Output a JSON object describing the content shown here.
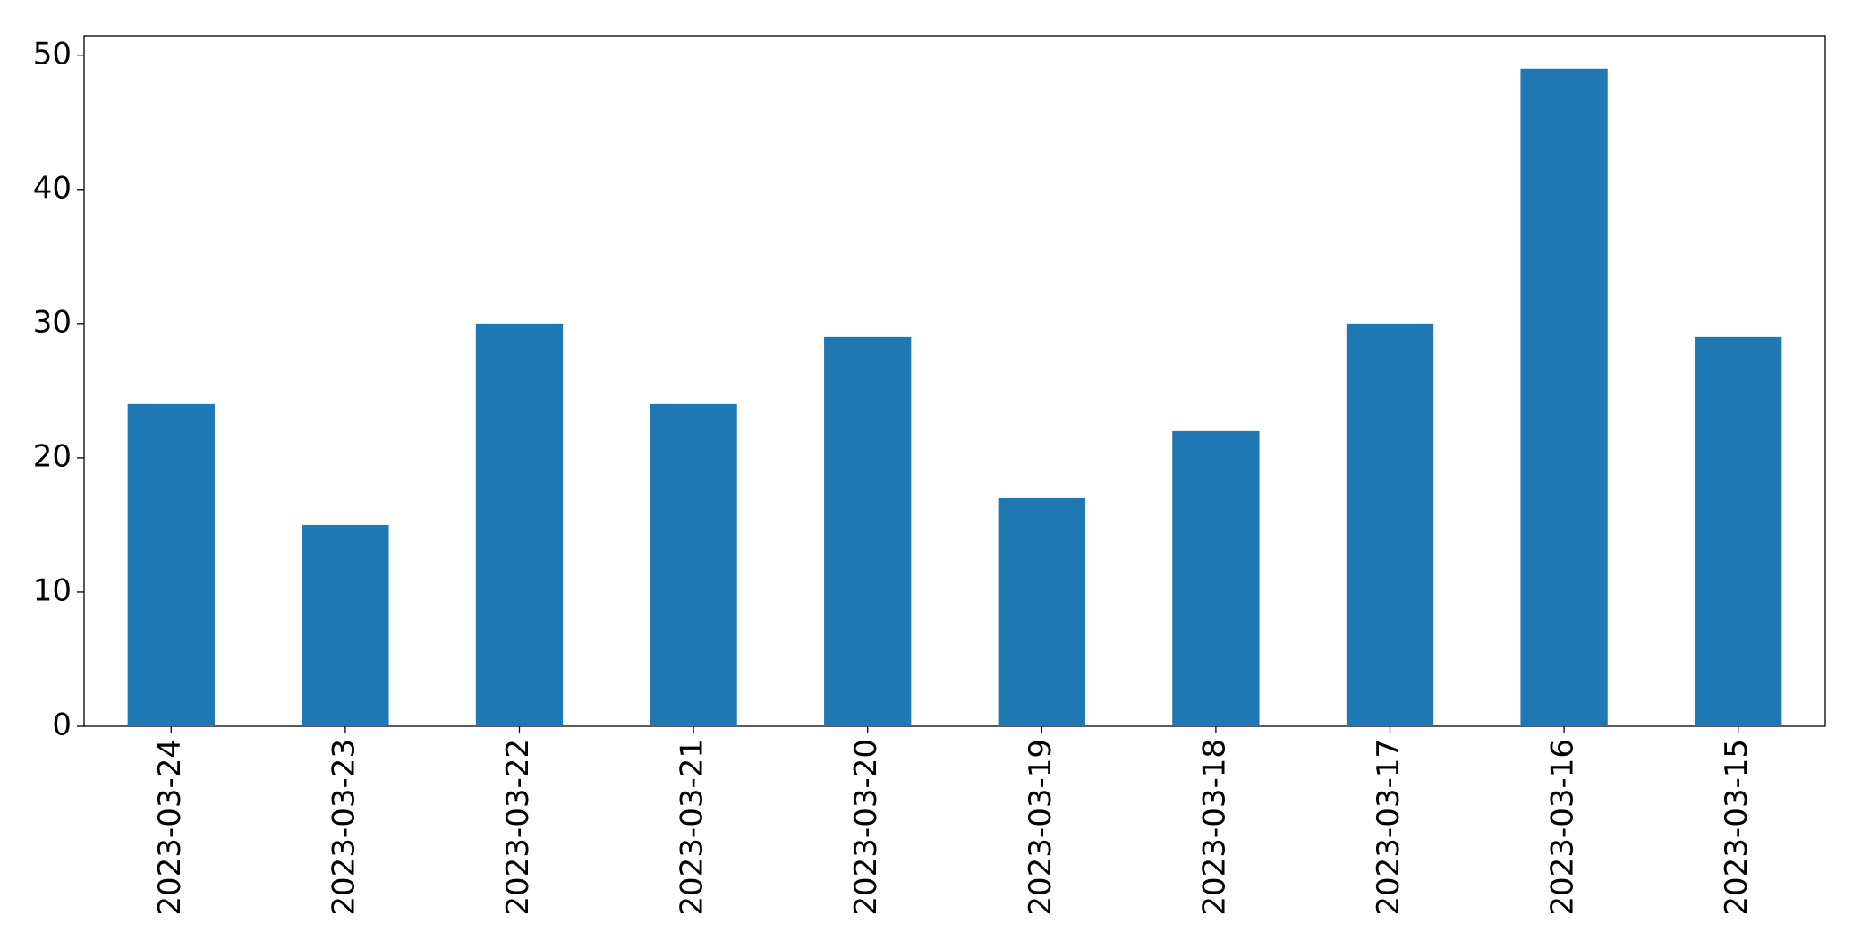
{
  "chart_data": {
    "type": "bar",
    "categories": [
      "2023-03-24",
      "2023-03-23",
      "2023-03-22",
      "2023-03-21",
      "2023-03-20",
      "2023-03-19",
      "2023-03-18",
      "2023-03-17",
      "2023-03-16",
      "2023-03-15"
    ],
    "values": [
      24,
      15,
      30,
      24,
      29,
      17,
      22,
      30,
      49,
      29
    ],
    "color": "#1f77b4",
    "ylim": [
      0,
      51.45
    ],
    "yticks": [
      0,
      10,
      20,
      30,
      40,
      50
    ],
    "grid": false
  }
}
